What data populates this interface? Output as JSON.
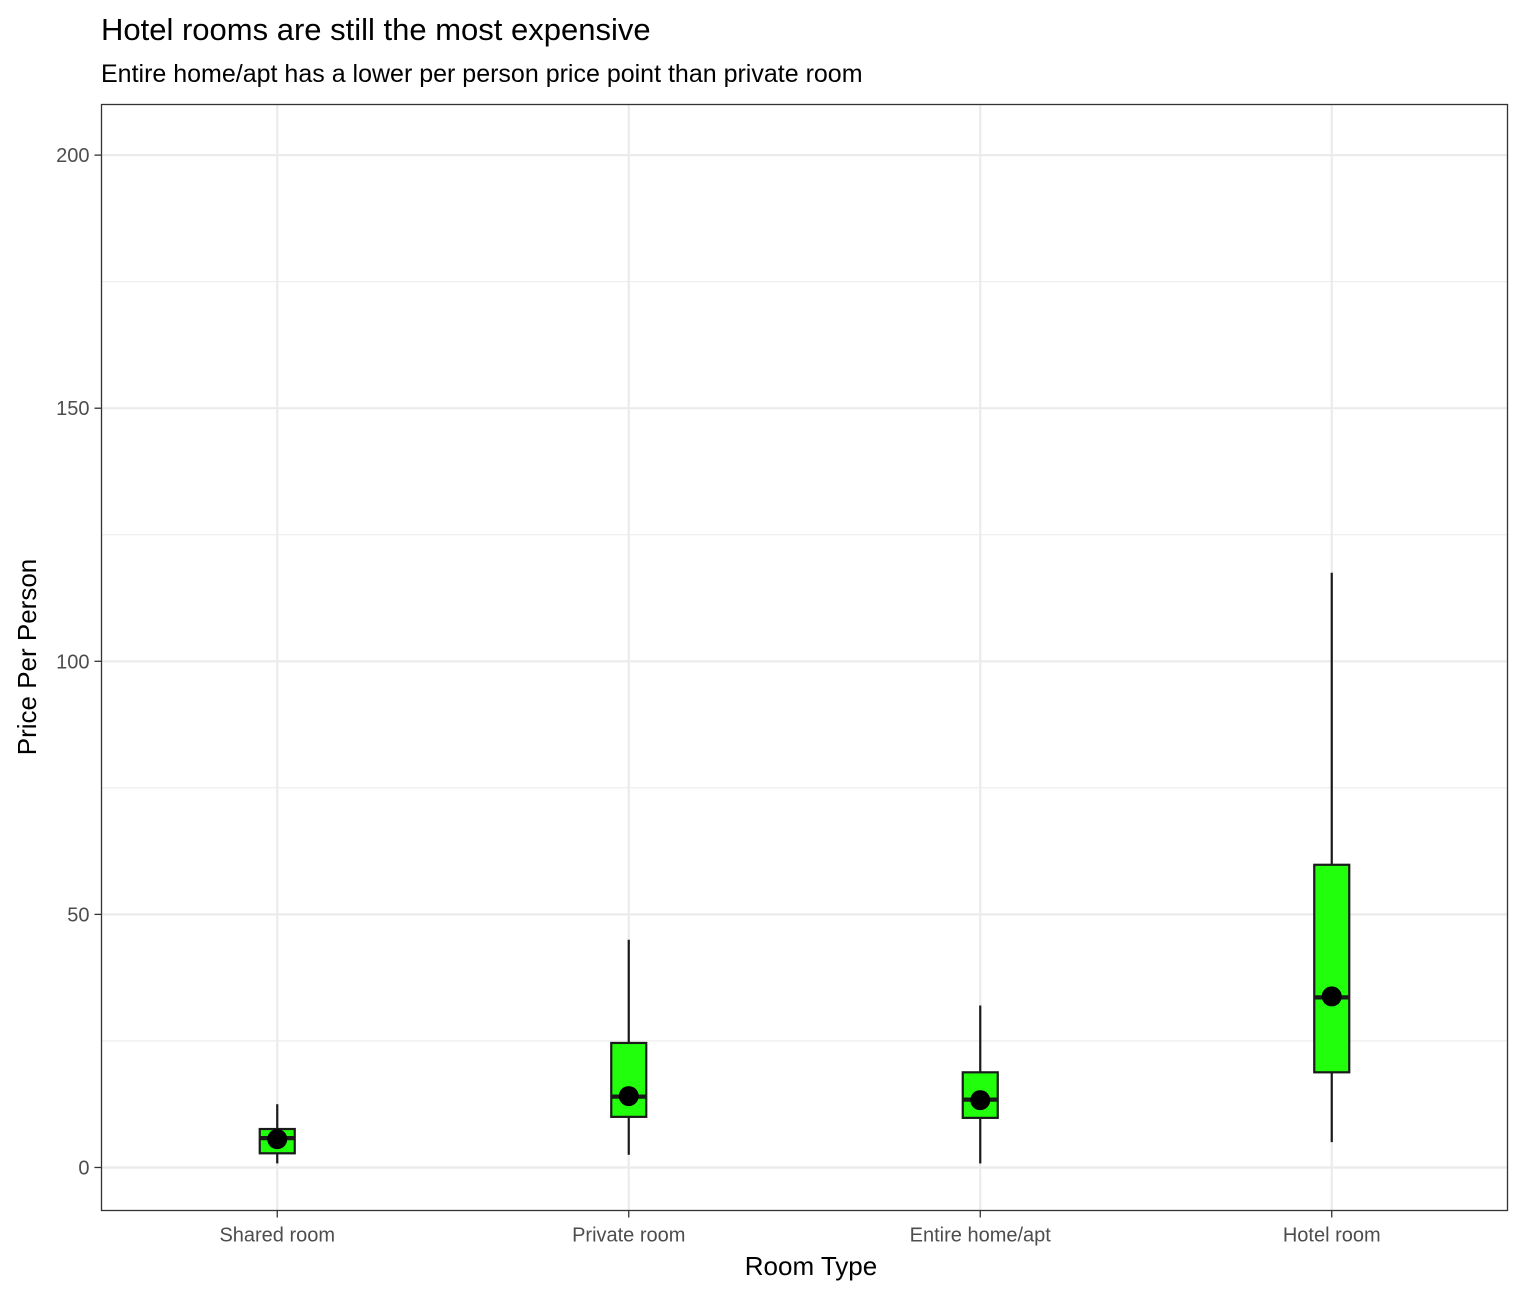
{
  "chart_data": {
    "type": "boxplot",
    "title": "Hotel rooms are still the most expensive",
    "subtitle": "Entire home/apt has a lower per person price point than private room",
    "xlabel": "Room Type",
    "ylabel": "Price Per Person",
    "ylim": [
      -8.5,
      210
    ],
    "yticks": [
      0,
      50,
      100,
      150,
      200
    ],
    "grid": true,
    "colors": {
      "box_fill": "#22ff0d",
      "outline": "#1a1a1a",
      "point": "#000000",
      "grid": "#ebebeb"
    },
    "categories": [
      "Shared room",
      "Private room",
      "Entire home/apt",
      "Hotel room"
    ],
    "boxes": [
      {
        "category": "Shared room",
        "whisker_low": 0.8,
        "q1": 2.8,
        "median": 5.8,
        "q3": 7.6,
        "whisker_high": 12.5,
        "mean": 5.6
      },
      {
        "category": "Private room",
        "whisker_low": 2.5,
        "q1": 10.0,
        "median": 14.0,
        "q3": 24.6,
        "whisker_high": 45.0,
        "mean": 14.1
      },
      {
        "category": "Entire home/apt",
        "whisker_low": 0.8,
        "q1": 9.8,
        "median": 13.4,
        "q3": 18.8,
        "whisker_high": 32.0,
        "mean": 13.3
      },
      {
        "category": "Hotel room",
        "whisker_low": 5.0,
        "q1": 18.8,
        "median": 33.6,
        "q3": 59.8,
        "whisker_high": 117.5,
        "mean": 33.8
      }
    ]
  }
}
